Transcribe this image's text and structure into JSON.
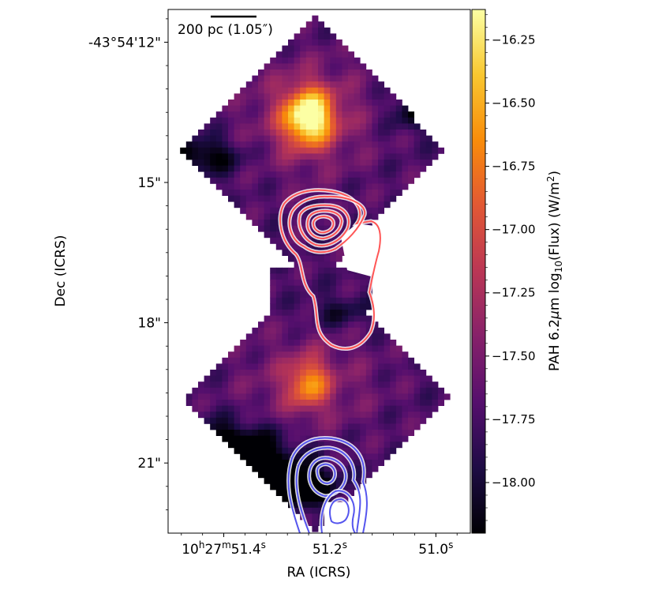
{
  "chart_data": {
    "type": "heatmap",
    "title": "",
    "xlabel": "RA (ICRS)",
    "ylabel": "Dec (ICRS)",
    "scalebar_label": "200 pc (1.05″)",
    "x_ticks": [
      {
        "label": "10h27m51.4s",
        "hms": [
          "10",
          "h",
          "27",
          "m",
          "51.4",
          "s"
        ],
        "ra_s": 51.4
      },
      {
        "label": "51.2s",
        "hms": [
          "",
          "",
          "",
          "",
          "51.2",
          "s"
        ],
        "ra_s": 51.2
      },
      {
        "label": "51.0s",
        "hms": [
          "",
          "",
          "",
          "",
          "51.0",
          "s"
        ],
        "ra_s": 51.0
      }
    ],
    "x_range_ra_s": [
      51.505,
      50.935
    ],
    "y_ticks": [
      {
        "label": "-43°54'12\"",
        "dec_arcsec": 12
      },
      {
        "label": "15\"",
        "dec_arcsec": 15
      },
      {
        "label": "18\"",
        "dec_arcsec": 18
      },
      {
        "label": "21\"",
        "dec_arcsec": 21
      }
    ],
    "y_range_dec_arcsec": [
      11.3,
      22.5
    ],
    "colorbar": {
      "label": "PAH 6.2μm log10(Flux) (W/m2)",
      "label_parts": {
        "pre": "PAH 6.2",
        "mu": "μ",
        "post": "m log",
        "sub": "10",
        "mid": "(Flux) (W/m",
        "sup": "2",
        "end": ")"
      },
      "colormap": "inferno",
      "range": [
        -18.2,
        -16.13
      ],
      "ticks": [
        "−16.25",
        "−16.50",
        "−16.75",
        "−17.00",
        "−17.25",
        "−17.50",
        "−17.75",
        "−18.00"
      ],
      "tick_values": [
        -16.25,
        -16.5,
        -16.75,
        -17.0,
        -17.25,
        -17.5,
        -17.75,
        -18.0
      ]
    },
    "peaks": [
      {
        "ra_s": 51.24,
        "dec_arcsec": 13.6,
        "log_flux": -16.2
      },
      {
        "ra_s": 51.24,
        "dec_arcsec": 19.3,
        "log_flux": -16.85
      }
    ],
    "contours": [
      {
        "color": "#ff5555",
        "region": "north"
      },
      {
        "color": "#5555ee",
        "region": "south"
      }
    ]
  },
  "colors": {
    "contour_red": "#ff5555",
    "contour_blue": "#5555ee",
    "axis": "#000000",
    "nodata": "#ffffff"
  }
}
